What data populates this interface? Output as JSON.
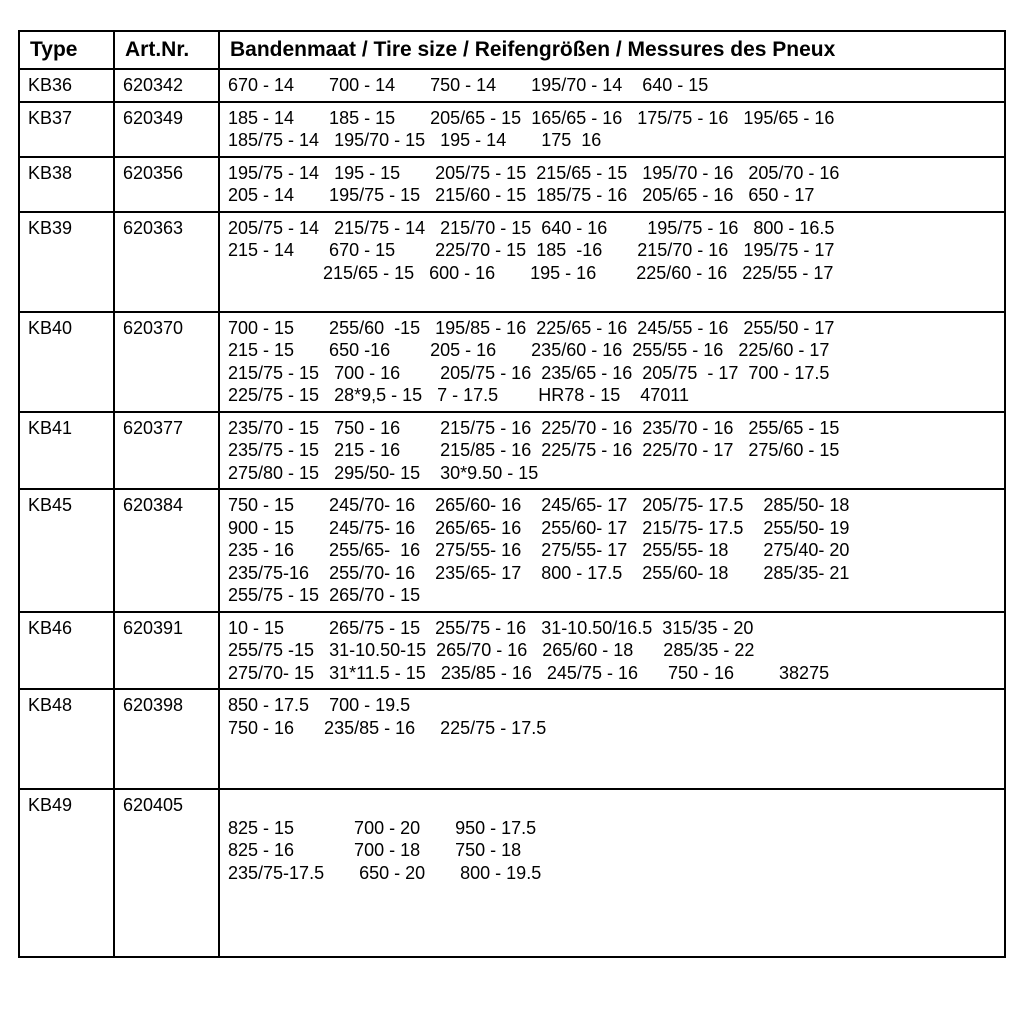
{
  "colors": {
    "border": "#000000",
    "background": "#ffffff",
    "text": "#000000"
  },
  "font": {
    "family": "Arial",
    "header_size_pt": 16,
    "cell_size_pt": 13
  },
  "headers": {
    "type": "Type",
    "art": "Art.Nr.",
    "sizes": "Bandenmaat / Tire size / Reifengrößen / Messures des Pneux"
  },
  "rows": [
    {
      "type": "KB36",
      "art": "620342",
      "sizes_html": "670 - 14&nbsp;&nbsp;&nbsp;&nbsp;&nbsp;&nbsp;&nbsp;700 - 14&nbsp;&nbsp;&nbsp;&nbsp;&nbsp;&nbsp;&nbsp;750 - 14&nbsp;&nbsp;&nbsp;&nbsp;&nbsp;&nbsp;&nbsp;195/70 - 14&nbsp;&nbsp;&nbsp;&nbsp;640 - 15"
    },
    {
      "type": "KB37",
      "art": "620349",
      "sizes_html": "185 - 14&nbsp;&nbsp;&nbsp;&nbsp;&nbsp;&nbsp;&nbsp;185 - 15&nbsp;&nbsp;&nbsp;&nbsp;&nbsp;&nbsp;&nbsp;205/65 - 15&nbsp;&nbsp;165/65 - 16&nbsp;&nbsp;&nbsp;175/75 - 16&nbsp;&nbsp;&nbsp;195/65 - 16<br>185/75 - 14&nbsp;&nbsp;&nbsp;195/70 - 15&nbsp;&nbsp;&nbsp;195 - 14&nbsp;&nbsp;&nbsp;&nbsp;&nbsp;&nbsp;&nbsp;175&nbsp;&nbsp;16"
    },
    {
      "type": "KB38",
      "art": "620356",
      "sizes_html": "195/75 - 14&nbsp;&nbsp;&nbsp;195 - 15&nbsp;&nbsp;&nbsp;&nbsp;&nbsp;&nbsp;&nbsp;205/75 - 15&nbsp;&nbsp;215/65 - 15&nbsp;&nbsp;&nbsp;195/70 - 16&nbsp;&nbsp;&nbsp;205/70 - 16<br>205 - 14&nbsp;&nbsp;&nbsp;&nbsp;&nbsp;&nbsp;&nbsp;195/75 - 15&nbsp;&nbsp;&nbsp;215/60 - 15&nbsp;&nbsp;185/75 - 16&nbsp;&nbsp;&nbsp;205/65 - 16&nbsp;&nbsp;&nbsp;650 - 17"
    },
    {
      "type": "KB39",
      "art": "620363",
      "sizes_html": "205/75 - 14&nbsp;&nbsp;&nbsp;215/75 - 14&nbsp;&nbsp;&nbsp;215/70 - 15&nbsp;&nbsp;640 - 16&nbsp;&nbsp;&nbsp;&nbsp;&nbsp;&nbsp;&nbsp;&nbsp;195/75 - 16&nbsp;&nbsp;&nbsp;800 - 16.5<br>215 - 14&nbsp;&nbsp;&nbsp;&nbsp;&nbsp;&nbsp;&nbsp;670 - 15&nbsp;&nbsp;&nbsp;&nbsp;&nbsp;&nbsp;&nbsp;&nbsp;225/70 - 15&nbsp;&nbsp;185&nbsp;&nbsp;-16&nbsp;&nbsp;&nbsp;&nbsp;&nbsp;&nbsp;&nbsp;215/70 - 16&nbsp;&nbsp;&nbsp;195/75 - 17<br>&nbsp;&nbsp;&nbsp;&nbsp;&nbsp;&nbsp;&nbsp;&nbsp;&nbsp;&nbsp;&nbsp;&nbsp;&nbsp;&nbsp;&nbsp;&nbsp;&nbsp;&nbsp;&nbsp;215/65 - 15&nbsp;&nbsp;&nbsp;600 - 16&nbsp;&nbsp;&nbsp;&nbsp;&nbsp;&nbsp;&nbsp;195 - 16&nbsp;&nbsp;&nbsp;&nbsp;&nbsp;&nbsp;&nbsp;&nbsp;225/60 - 16&nbsp;&nbsp;&nbsp;225/55 - 17<br>&nbsp;"
    },
    {
      "type": "KB40",
      "art": "620370",
      "sizes_html": "700 - 15&nbsp;&nbsp;&nbsp;&nbsp;&nbsp;&nbsp;&nbsp;255/60&nbsp;&nbsp;-15&nbsp;&nbsp;&nbsp;195/85 - 16&nbsp;&nbsp;225/65 - 16&nbsp;&nbsp;245/55 - 16&nbsp;&nbsp;&nbsp;255/50 - 17<br>215 - 15&nbsp;&nbsp;&nbsp;&nbsp;&nbsp;&nbsp;&nbsp;650 -16&nbsp;&nbsp;&nbsp;&nbsp;&nbsp;&nbsp;&nbsp;&nbsp;205 - 16&nbsp;&nbsp;&nbsp;&nbsp;&nbsp;&nbsp;&nbsp;235/60 - 16&nbsp;&nbsp;255/55 - 16&nbsp;&nbsp;&nbsp;225/60 - 17<br>215/75 - 15&nbsp;&nbsp;&nbsp;700 - 16&nbsp;&nbsp;&nbsp;&nbsp;&nbsp;&nbsp;&nbsp;&nbsp;205/75 - 16&nbsp;&nbsp;235/65 - 16&nbsp;&nbsp;205/75&nbsp; - 17&nbsp;&nbsp;700 - 17.5<br>225/75 - 15&nbsp;&nbsp;&nbsp;28*9,5 - 15&nbsp;&nbsp;&nbsp;7 - 17.5&nbsp;&nbsp;&nbsp;&nbsp;&nbsp;&nbsp;&nbsp;&nbsp;HR78 - 15&nbsp;&nbsp;&nbsp;&nbsp;47011"
    },
    {
      "type": "KB41",
      "art": "620377",
      "sizes_html": "235/70 - 15&nbsp;&nbsp;&nbsp;750 - 16&nbsp;&nbsp;&nbsp;&nbsp;&nbsp;&nbsp;&nbsp;&nbsp;215/75 - 16&nbsp;&nbsp;225/70 - 16&nbsp;&nbsp;235/70 - 16&nbsp;&nbsp;&nbsp;255/65 - 15<br>235/75 - 15&nbsp;&nbsp;&nbsp;215 - 16&nbsp;&nbsp;&nbsp;&nbsp;&nbsp;&nbsp;&nbsp;&nbsp;215/85 - 16&nbsp;&nbsp;225/75 - 16&nbsp;&nbsp;225/70 - 17&nbsp;&nbsp;&nbsp;275/60 - 15<br>275/80 - 15&nbsp;&nbsp;&nbsp;295/50- 15&nbsp;&nbsp;&nbsp;&nbsp;30*9.50 - 15"
    },
    {
      "type": "KB45",
      "art": "620384",
      "sizes_html": "750 - 15&nbsp;&nbsp;&nbsp;&nbsp;&nbsp;&nbsp;&nbsp;245/70- 16&nbsp;&nbsp;&nbsp;&nbsp;265/60- 16&nbsp;&nbsp;&nbsp;&nbsp;245/65- 17&nbsp;&nbsp;&nbsp;205/75- 17.5&nbsp;&nbsp;&nbsp;&nbsp;285/50- 18<br>900 - 15&nbsp;&nbsp;&nbsp;&nbsp;&nbsp;&nbsp;&nbsp;245/75- 16&nbsp;&nbsp;&nbsp;&nbsp;265/65- 16&nbsp;&nbsp;&nbsp;&nbsp;255/60- 17&nbsp;&nbsp;&nbsp;215/75- 17.5&nbsp;&nbsp;&nbsp;&nbsp;255/50- 19<br>235 - 16&nbsp;&nbsp;&nbsp;&nbsp;&nbsp;&nbsp;&nbsp;255/65-&nbsp;&nbsp;16&nbsp;&nbsp;&nbsp;275/55- 16&nbsp;&nbsp;&nbsp;&nbsp;275/55- 17&nbsp;&nbsp;&nbsp;255/55- 18&nbsp;&nbsp;&nbsp;&nbsp;&nbsp;&nbsp;&nbsp;275/40- 20<br>235/75-16&nbsp;&nbsp;&nbsp;&nbsp;255/70- 16&nbsp;&nbsp;&nbsp;&nbsp;235/65- 17&nbsp;&nbsp;&nbsp;&nbsp;800 - 17.5&nbsp;&nbsp;&nbsp;&nbsp;255/60- 18&nbsp;&nbsp;&nbsp;&nbsp;&nbsp;&nbsp;&nbsp;285/35- 21<br>255/75 - 15&nbsp;&nbsp;265/70 - 15"
    },
    {
      "type": "KB46",
      "art": "620391",
      "sizes_html": "10 - 15&nbsp;&nbsp;&nbsp;&nbsp;&nbsp;&nbsp;&nbsp;&nbsp;&nbsp;265/75 - 15&nbsp;&nbsp;&nbsp;255/75 - 16&nbsp;&nbsp;&nbsp;31-10.50/16.5&nbsp;&nbsp;315/35 - 20<br>255/75 -15&nbsp;&nbsp;&nbsp;31-10.50-15&nbsp;&nbsp;265/70 - 16&nbsp;&nbsp;&nbsp;265/60 - 18&nbsp;&nbsp;&nbsp;&nbsp;&nbsp;&nbsp;285/35 - 22<br>275/70- 15&nbsp;&nbsp;&nbsp;31*11.5 - 15&nbsp;&nbsp;&nbsp;235/85 - 16&nbsp;&nbsp;&nbsp;245/75 - 16&nbsp;&nbsp;&nbsp;&nbsp;&nbsp;&nbsp;750 - 16&nbsp;&nbsp;&nbsp;&nbsp;&nbsp;&nbsp;&nbsp;&nbsp;&nbsp;38275"
    },
    {
      "type": "KB48",
      "art": "620398",
      "sizes_html": "850 - 17.5&nbsp;&nbsp;&nbsp;&nbsp;700 - 19.5<br>750 - 16&nbsp;&nbsp;&nbsp;&nbsp;&nbsp;&nbsp;235/85 - 16&nbsp;&nbsp;&nbsp;&nbsp;&nbsp;225/75 - 17.5<br>&nbsp;<br>&nbsp;"
    },
    {
      "type": "KB49",
      "art": "620405",
      "sizes_html": "<br>825 - 15&nbsp;&nbsp;&nbsp;&nbsp;&nbsp;&nbsp;&nbsp;&nbsp;&nbsp;&nbsp;&nbsp;&nbsp;700 - 20&nbsp;&nbsp;&nbsp;&nbsp;&nbsp;&nbsp;&nbsp;950 - 17.5<br>825 - 16&nbsp;&nbsp;&nbsp;&nbsp;&nbsp;&nbsp;&nbsp;&nbsp;&nbsp;&nbsp;&nbsp;&nbsp;700 - 18&nbsp;&nbsp;&nbsp;&nbsp;&nbsp;&nbsp;&nbsp;750 - 18<br>235/75-17.5&nbsp;&nbsp;&nbsp;&nbsp;&nbsp;&nbsp;&nbsp;650 - 20&nbsp;&nbsp;&nbsp;&nbsp;&nbsp;&nbsp;&nbsp;800 - 19.5<br>&nbsp;<br>&nbsp;<br>&nbsp;"
    }
  ]
}
